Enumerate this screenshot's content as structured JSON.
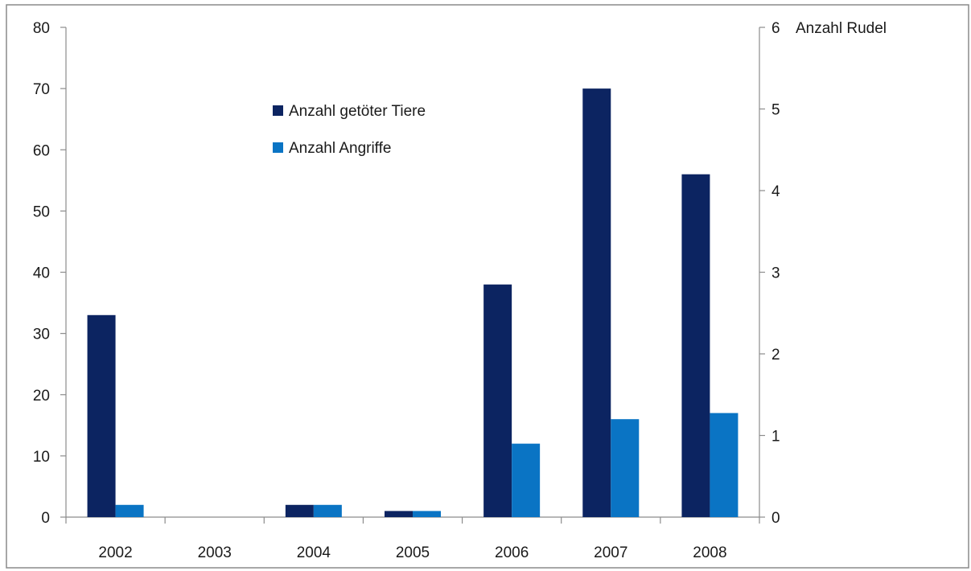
{
  "chart_data": {
    "type": "bar",
    "categories": [
      "2002",
      "2003",
      "2004",
      "2005",
      "2006",
      "2007",
      "2008"
    ],
    "series": [
      {
        "name": "Anzahl getöter Tiere",
        "color": "#0c2461",
        "values": [
          33,
          0,
          2,
          1,
          38,
          70,
          56
        ]
      },
      {
        "name": "Anzahl Angriffe",
        "color": "#0a74c4",
        "values": [
          2,
          0,
          2,
          1,
          12,
          16,
          17
        ]
      }
    ],
    "ylim": [
      0,
      80
    ],
    "yticks": [
      0,
      10,
      20,
      30,
      40,
      50,
      60,
      70,
      80
    ],
    "y2lim": [
      0,
      6
    ],
    "y2ticks": [
      0,
      1,
      2,
      3,
      4,
      5,
      6
    ],
    "y2label": "Anzahl Rudel",
    "legend_position": "top-center",
    "grid": false
  }
}
